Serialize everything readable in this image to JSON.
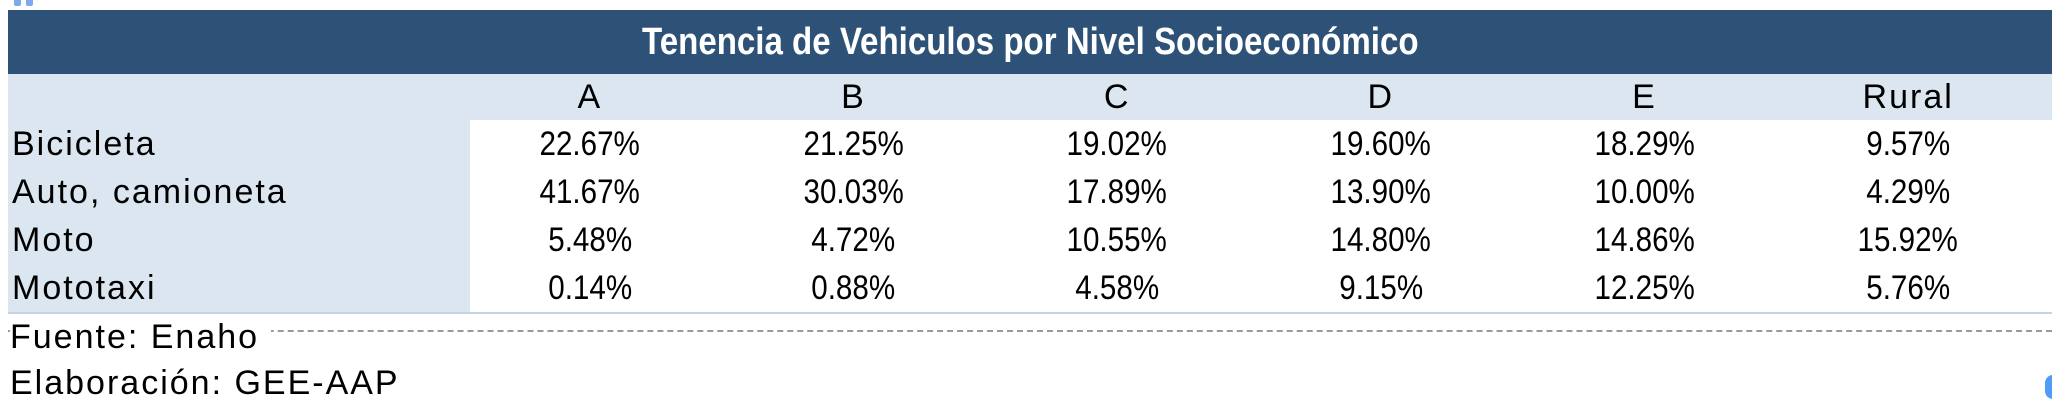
{
  "colors": {
    "page_bg": "#FFFFFF",
    "title_bar_bg": "#2E5277",
    "title_text": "#FFFFFF",
    "band_bg": "#DCE6F1",
    "body_text": "#000000",
    "table_edge": "#C9D3DF",
    "dashed_line": "#9A9A9A",
    "top_marks": "#7FA8EC",
    "cursor_pill": "#4E9CF7"
  },
  "chart_data": {
    "type": "table",
    "title": "Tenencia de Vehiculos por Nivel Socioeconómico",
    "columns": [
      "A",
      "B",
      "C",
      "D",
      "E",
      "Rural"
    ],
    "rows": [
      {
        "label": "Bicicleta",
        "values": [
          "22.67%",
          "21.25%",
          "19.02%",
          "19.60%",
          "18.29%",
          "9.57%"
        ]
      },
      {
        "label": "Auto, camioneta",
        "values": [
          "41.67%",
          "30.03%",
          "17.89%",
          "13.90%",
          "10.00%",
          "4.29%"
        ]
      },
      {
        "label": "Moto",
        "values": [
          "5.48%",
          "4.72%",
          "10.55%",
          "14.80%",
          "14.86%",
          "15.92%"
        ]
      },
      {
        "label": "Mototaxi",
        "values": [
          "0.14%",
          "0.88%",
          "4.58%",
          "9.15%",
          "12.25%",
          "5.76%"
        ]
      }
    ],
    "footer": {
      "source": "Fuente: Enaho",
      "elaboration": "Elaboración: GEE-AAP"
    },
    "layout": {
      "header_row": true,
      "label_column_highlighted": true,
      "grid": "off",
      "legend": "none"
    }
  }
}
